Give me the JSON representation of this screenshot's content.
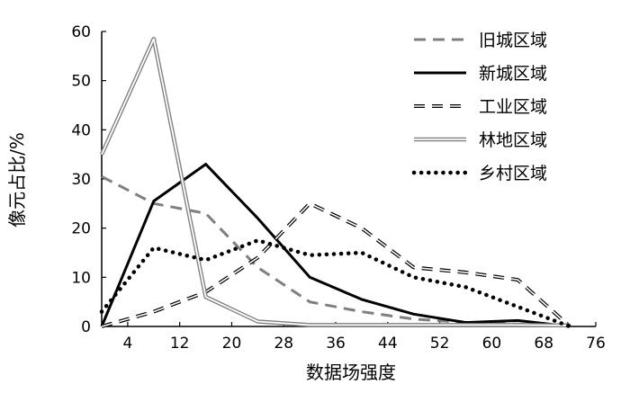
{
  "chart_data": {
    "type": "line",
    "xlabel": "数据场强度",
    "ylabel": "像元占比/%",
    "xlim": [
      0,
      76
    ],
    "ylim": [
      0,
      60
    ],
    "xticks": [
      4,
      12,
      20,
      28,
      36,
      44,
      52,
      60,
      68,
      76
    ],
    "yticks": [
      0,
      10,
      20,
      30,
      40,
      50,
      60
    ],
    "legend_position": "top-right",
    "grid": false,
    "series": [
      {
        "name": "旧城区域",
        "style": "long-dash",
        "color": "#7f7f7f",
        "x": [
          0,
          8,
          16,
          24,
          32,
          40,
          48,
          56,
          64,
          72
        ],
        "y": [
          30.5,
          25,
          23,
          12,
          5,
          3,
          1.5,
          0.8,
          0.5,
          0.2
        ]
      },
      {
        "name": "新城区域",
        "style": "solid",
        "color": "#000000",
        "x": [
          0,
          8,
          16,
          24,
          32,
          40,
          48,
          56,
          64,
          72
        ],
        "y": [
          0,
          25.5,
          33,
          22,
          10,
          5.5,
          2.5,
          0.8,
          1.2,
          0
        ]
      },
      {
        "name": "工业区域",
        "style": "double-dash",
        "color": "#000000",
        "x": [
          0,
          8,
          16,
          24,
          32,
          40,
          48,
          56,
          64,
          72
        ],
        "y": [
          0,
          3,
          7,
          14,
          25,
          20,
          12,
          11,
          9.5,
          0
        ]
      },
      {
        "name": "林地区域",
        "style": "double-solid",
        "color": "#7f7f7f",
        "x": [
          0,
          8,
          16,
          24,
          32,
          40,
          48,
          56,
          64,
          72
        ],
        "y": [
          35,
          58.5,
          6,
          1,
          0.3,
          0.3,
          0.3,
          0.3,
          0.3,
          0.2
        ]
      },
      {
        "name": "乡村区域",
        "style": "dotted",
        "color": "#000000",
        "x": [
          0,
          8,
          16,
          24,
          32,
          40,
          48,
          56,
          64,
          72
        ],
        "y": [
          3,
          16,
          13.5,
          17.5,
          14.5,
          15,
          10,
          8,
          4,
          0
        ]
      }
    ]
  }
}
